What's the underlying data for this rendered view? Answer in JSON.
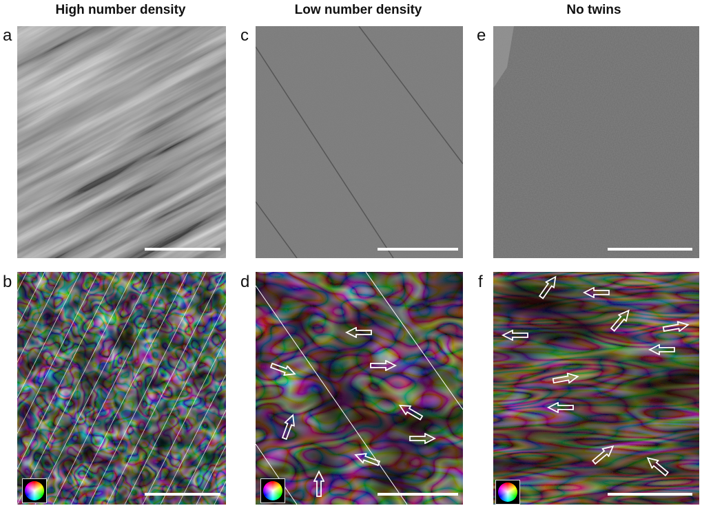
{
  "columns": [
    {
      "title": "High number density",
      "top_label": "a",
      "bottom_label": "b"
    },
    {
      "title": "Low number density",
      "top_label": "c",
      "bottom_label": "d"
    },
    {
      "title": "No twins",
      "top_label": "e",
      "bottom_label": "f"
    }
  ],
  "colors": {
    "scale_bar": "#ffffff",
    "arrow_outline": "#ffffff",
    "twin_boundary_line": "#ffffff"
  },
  "icons": {
    "color_wheel": "hue-color-wheel-icon",
    "arrow": "outlined-arrow-icon"
  }
}
